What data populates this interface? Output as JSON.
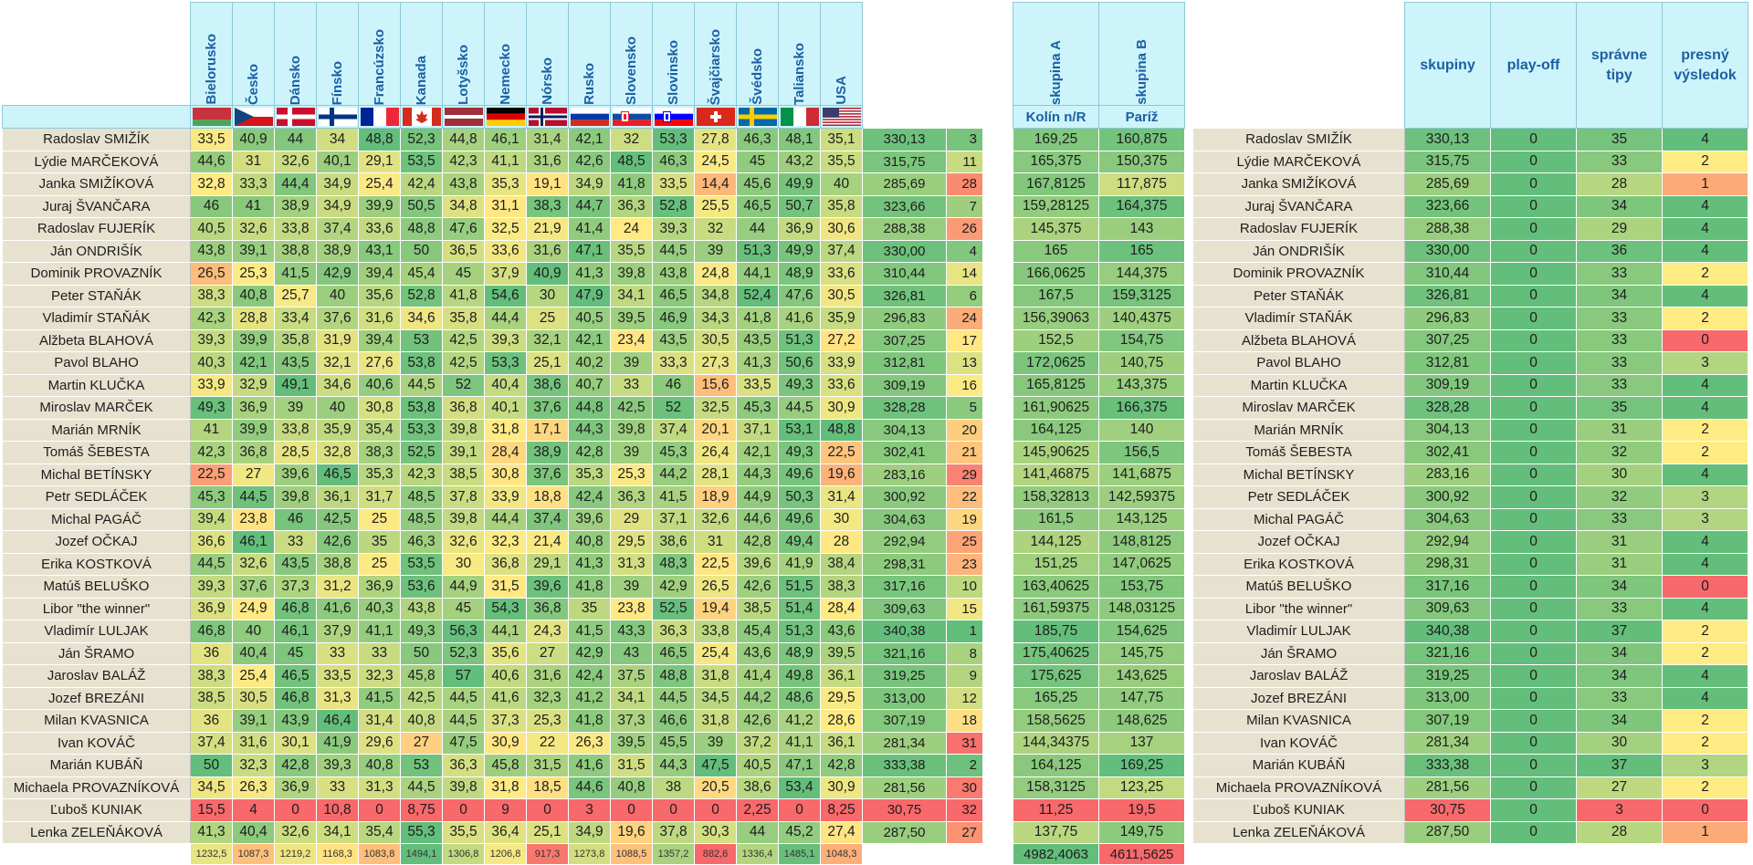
{
  "countries": [
    "Bielorusko",
    "Česko",
    "Dánsko",
    "Fínsko",
    "Francúzsko",
    "Kanada",
    "Lotyšsko",
    "Nemecko",
    "Nórsko",
    "Rusko",
    "Slovensko",
    "Slovinsko",
    "Švajčiarsko",
    "Švédsko",
    "Taliansko",
    "USA"
  ],
  "groups": {
    "headers": [
      "skupina A",
      "skupina B"
    ],
    "sub": [
      "Kolín n/R",
      "Paríž"
    ],
    "totals": [
      "4982,4063",
      "4611,5625"
    ]
  },
  "summary_headers": [
    "skupiny",
    "play-off",
    "správne tipy",
    "presný výsledok"
  ],
  "column_totals": [
    "1232,5",
    "1087,3",
    "1219,2",
    "1168,3",
    "1083,8",
    "1494,1",
    "1306,8",
    "1206,8",
    "917,3",
    "1273,8",
    "1088,5",
    "1357,2",
    "882,6",
    "1336,4",
    "1485,1",
    "1048,3"
  ],
  "rows": [
    {
      "name": "Radoslav SMIŽÍK",
      "scores": [
        "33,5",
        "40,9",
        "44",
        "34",
        "48,8",
        "52,3",
        "44,8",
        "46,1",
        "31,4",
        "42,1",
        "32",
        "53,3",
        "27,8",
        "46,3",
        "48,1",
        "35,1"
      ],
      "total": "330,13",
      "rank": "3",
      "ga": "169,25",
      "gb": "160,875",
      "skupiny": "330,13",
      "playoff": "0",
      "tipy": "35",
      "presny": "4"
    },
    {
      "name": "Lýdie MARČEKOVÁ",
      "scores": [
        "44,6",
        "31",
        "32,6",
        "40,1",
        "29,1",
        "53,5",
        "42,3",
        "41,1",
        "31,6",
        "42,6",
        "48,5",
        "46,3",
        "24,5",
        "45",
        "43,2",
        "35,5"
      ],
      "total": "315,75",
      "rank": "11",
      "ga": "165,375",
      "gb": "150,375",
      "skupiny": "315,75",
      "playoff": "0",
      "tipy": "33",
      "presny": "2"
    },
    {
      "name": "Janka SMIŽÍKOVÁ",
      "scores": [
        "32,8",
        "33,3",
        "44,4",
        "34,9",
        "25,4",
        "42,4",
        "43,8",
        "35,3",
        "19,1",
        "34,9",
        "41,8",
        "33,5",
        "14,4",
        "45,6",
        "49,9",
        "40"
      ],
      "total": "285,69",
      "rank": "28",
      "ga": "167,8125",
      "gb": "117,875",
      "skupiny": "285,69",
      "playoff": "0",
      "tipy": "28",
      "presny": "1"
    },
    {
      "name": "Juraj ŠVANČARA",
      "scores": [
        "46",
        "41",
        "38,9",
        "34,9",
        "39,9",
        "50,5",
        "34,8",
        "31,1",
        "38,3",
        "44,7",
        "36,3",
        "52,8",
        "25,5",
        "46,5",
        "50,7",
        "35,8"
      ],
      "total": "323,66",
      "rank": "7",
      "ga": "159,28125",
      "gb": "164,375",
      "skupiny": "323,66",
      "playoff": "0",
      "tipy": "34",
      "presny": "4"
    },
    {
      "name": "Radoslav FUJERÍK",
      "scores": [
        "40,5",
        "32,6",
        "33,8",
        "37,4",
        "33,6",
        "48,8",
        "47,6",
        "32,5",
        "21,9",
        "41,4",
        "24",
        "39,3",
        "32",
        "44",
        "36,9",
        "30,6"
      ],
      "total": "288,38",
      "rank": "26",
      "ga": "145,375",
      "gb": "143",
      "skupiny": "288,38",
      "playoff": "0",
      "tipy": "29",
      "presny": "4"
    },
    {
      "name": "Ján ONDRIŠÍK",
      "scores": [
        "43,8",
        "39,1",
        "38,8",
        "38,9",
        "43,1",
        "50",
        "36,5",
        "33,6",
        "31,6",
        "47,1",
        "35,5",
        "44,5",
        "39",
        "51,3",
        "49,9",
        "37,4"
      ],
      "total": "330,00",
      "rank": "4",
      "ga": "165",
      "gb": "165",
      "skupiny": "330,00",
      "playoff": "0",
      "tipy": "36",
      "presny": "4"
    },
    {
      "name": "Dominik PROVAZNÍK",
      "scores": [
        "26,5",
        "25,3",
        "41,5",
        "42,9",
        "39,4",
        "45,4",
        "45",
        "37,9",
        "40,9",
        "41,3",
        "39,8",
        "43,8",
        "24,8",
        "44,1",
        "48,9",
        "33,6"
      ],
      "total": "310,44",
      "rank": "14",
      "ga": "166,0625",
      "gb": "144,375",
      "skupiny": "310,44",
      "playoff": "0",
      "tipy": "33",
      "presny": "2"
    },
    {
      "name": "Peter STAŇÁK",
      "scores": [
        "38,3",
        "40,8",
        "25,7",
        "40",
        "35,6",
        "52,8",
        "41,8",
        "54,6",
        "30",
        "47,9",
        "34,1",
        "46,5",
        "34,8",
        "52,4",
        "47,6",
        "30,5"
      ],
      "total": "326,81",
      "rank": "6",
      "ga": "167,5",
      "gb": "159,3125",
      "skupiny": "326,81",
      "playoff": "0",
      "tipy": "34",
      "presny": "4"
    },
    {
      "name": "Vladimír STAŇÁK",
      "scores": [
        "42,3",
        "28,8",
        "33,4",
        "37,6",
        "31,6",
        "34,6",
        "35,8",
        "44,4",
        "25",
        "40,5",
        "39,5",
        "46,9",
        "34,3",
        "41,8",
        "41,6",
        "35,9"
      ],
      "total": "296,83",
      "rank": "24",
      "ga": "156,39063",
      "gb": "140,4375",
      "skupiny": "296,83",
      "playoff": "0",
      "tipy": "33",
      "presny": "2"
    },
    {
      "name": "Alžbeta BLAHOVÁ",
      "scores": [
        "39,3",
        "39,9",
        "35,8",
        "31,9",
        "39,4",
        "53",
        "42,5",
        "39,3",
        "32,1",
        "42,1",
        "23,4",
        "43,5",
        "30,5",
        "43,5",
        "51,3",
        "27,2"
      ],
      "total": "307,25",
      "rank": "17",
      "ga": "152,5",
      "gb": "154,75",
      "skupiny": "307,25",
      "playoff": "0",
      "tipy": "33",
      "presny": "0"
    },
    {
      "name": "Pavol BLAHO",
      "scores": [
        "40,3",
        "42,1",
        "43,5",
        "32,1",
        "27,6",
        "53,8",
        "42,5",
        "53,3",
        "25,1",
        "40,2",
        "39",
        "33,3",
        "27,3",
        "41,3",
        "50,6",
        "33,9"
      ],
      "total": "312,81",
      "rank": "13",
      "ga": "172,0625",
      "gb": "140,75",
      "skupiny": "312,81",
      "playoff": "0",
      "tipy": "33",
      "presny": "3"
    },
    {
      "name": "Martin KLUČKA",
      "scores": [
        "33,9",
        "32,9",
        "49,1",
        "34,6",
        "40,6",
        "44,5",
        "52",
        "40,4",
        "38,6",
        "40,7",
        "33",
        "46",
        "15,6",
        "33,5",
        "49,3",
        "33,6"
      ],
      "total": "309,19",
      "rank": "16",
      "ga": "165,8125",
      "gb": "143,375",
      "skupiny": "309,19",
      "playoff": "0",
      "tipy": "33",
      "presny": "4"
    },
    {
      "name": "Miroslav MARČEK",
      "scores": [
        "49,3",
        "36,9",
        "39",
        "40",
        "30,8",
        "53,8",
        "36,8",
        "40,1",
        "37,6",
        "44,8",
        "42,5",
        "52",
        "32,5",
        "45,3",
        "44,5",
        "30,9"
      ],
      "total": "328,28",
      "rank": "5",
      "ga": "161,90625",
      "gb": "166,375",
      "skupiny": "328,28",
      "playoff": "0",
      "tipy": "35",
      "presny": "4"
    },
    {
      "name": "Marián MRNÍK",
      "scores": [
        "41",
        "39,9",
        "33,8",
        "35,9",
        "35,4",
        "53,3",
        "39,8",
        "31,8",
        "17,1",
        "44,3",
        "39,8",
        "37,4",
        "20,1",
        "37,1",
        "53,1",
        "48,8"
      ],
      "total": "304,13",
      "rank": "20",
      "ga": "164,125",
      "gb": "140",
      "skupiny": "304,13",
      "playoff": "0",
      "tipy": "31",
      "presny": "2"
    },
    {
      "name": "Tomáš ŠEBESTA",
      "scores": [
        "42,3",
        "36,8",
        "28,5",
        "32,8",
        "38,3",
        "52,5",
        "39,1",
        "28,4",
        "38,9",
        "42,8",
        "39",
        "45,3",
        "26,4",
        "42,1",
        "49,3",
        "22,5"
      ],
      "total": "302,41",
      "rank": "21",
      "ga": "145,90625",
      "gb": "156,5",
      "skupiny": "302,41",
      "playoff": "0",
      "tipy": "32",
      "presny": "2"
    },
    {
      "name": "Michal BETÍNSKY",
      "scores": [
        "22,5",
        "27",
        "39,6",
        "46,5",
        "35,3",
        "42,3",
        "38,5",
        "30,8",
        "37,6",
        "35,3",
        "25,3",
        "44,2",
        "28,1",
        "44,3",
        "49,6",
        "19,6"
      ],
      "total": "283,16",
      "rank": "29",
      "ga": "141,46875",
      "gb": "141,6875",
      "skupiny": "283,16",
      "playoff": "0",
      "tipy": "30",
      "presny": "4"
    },
    {
      "name": "Petr SEDLÁČEK",
      "scores": [
        "45,3",
        "44,5",
        "39,8",
        "36,1",
        "31,7",
        "48,5",
        "37,8",
        "33,9",
        "18,8",
        "42,4",
        "36,3",
        "41,5",
        "18,9",
        "44,9",
        "50,3",
        "31,4"
      ],
      "total": "300,92",
      "rank": "22",
      "ga": "158,32813",
      "gb": "142,59375",
      "skupiny": "300,92",
      "playoff": "0",
      "tipy": "32",
      "presny": "3"
    },
    {
      "name": "Michal PAGÁČ",
      "scores": [
        "39,4",
        "23,8",
        "46",
        "42,5",
        "25",
        "48,5",
        "39,8",
        "44,4",
        "37,4",
        "39,6",
        "29",
        "37,1",
        "32,6",
        "44,6",
        "49,6",
        "30"
      ],
      "total": "304,63",
      "rank": "19",
      "ga": "161,5",
      "gb": "143,125",
      "skupiny": "304,63",
      "playoff": "0",
      "tipy": "33",
      "presny": "3"
    },
    {
      "name": "Jozef OČKAJ",
      "scores": [
        "36,6",
        "46,1",
        "33",
        "42,6",
        "35",
        "46,3",
        "32,6",
        "32,3",
        "21,4",
        "40,8",
        "29,5",
        "38,6",
        "31",
        "42,8",
        "49,4",
        "28"
      ],
      "total": "292,94",
      "rank": "25",
      "ga": "144,125",
      "gb": "148,8125",
      "skupiny": "292,94",
      "playoff": "0",
      "tipy": "31",
      "presny": "4"
    },
    {
      "name": "Erika KOSTKOVÁ",
      "scores": [
        "44,5",
        "32,6",
        "43,5",
        "38,8",
        "25",
        "53,5",
        "30",
        "36,8",
        "29,1",
        "41,3",
        "31,3",
        "48,3",
        "22,5",
        "39,6",
        "41,9",
        "38,4"
      ],
      "total": "298,31",
      "rank": "23",
      "ga": "151,25",
      "gb": "147,0625",
      "skupiny": "298,31",
      "playoff": "0",
      "tipy": "31",
      "presny": "4"
    },
    {
      "name": "Matúš BELUŠKO",
      "scores": [
        "39,3",
        "37,6",
        "37,3",
        "31,2",
        "36,9",
        "53,6",
        "44,9",
        "31,5",
        "39,6",
        "41,8",
        "39",
        "42,9",
        "26,5",
        "42,6",
        "51,5",
        "38,3"
      ],
      "total": "317,16",
      "rank": "10",
      "ga": "163,40625",
      "gb": "153,75",
      "skupiny": "317,16",
      "playoff": "0",
      "tipy": "34",
      "presny": "0"
    },
    {
      "name": "Libor \"the winner\"",
      "scores": [
        "36,9",
        "24,9",
        "46,8",
        "41,6",
        "40,3",
        "43,8",
        "45",
        "54,3",
        "36,8",
        "35",
        "23,8",
        "52,5",
        "19,4",
        "38,5",
        "51,4",
        "28,4"
      ],
      "total": "309,63",
      "rank": "15",
      "ga": "161,59375",
      "gb": "148,03125",
      "skupiny": "309,63",
      "playoff": "0",
      "tipy": "33",
      "presny": "4"
    },
    {
      "name": "Vladimír LULJAK",
      "scores": [
        "46,8",
        "40",
        "46,1",
        "37,9",
        "41,1",
        "49,3",
        "56,3",
        "44,1",
        "24,3",
        "41,5",
        "43,3",
        "36,3",
        "33,8",
        "45,4",
        "51,3",
        "43,6"
      ],
      "total": "340,38",
      "rank": "1",
      "ga": "185,75",
      "gb": "154,625",
      "skupiny": "340,38",
      "playoff": "0",
      "tipy": "37",
      "presny": "2"
    },
    {
      "name": "Ján ŠRAMO",
      "scores": [
        "36",
        "40,4",
        "45",
        "33",
        "33",
        "50",
        "52,3",
        "35,6",
        "27",
        "42,9",
        "43",
        "46,5",
        "25,4",
        "43,6",
        "48,9",
        "39,5"
      ],
      "total": "321,16",
      "rank": "8",
      "ga": "175,40625",
      "gb": "145,75",
      "skupiny": "321,16",
      "playoff": "0",
      "tipy": "34",
      "presny": "2"
    },
    {
      "name": "Jaroslav BALÁŽ",
      "scores": [
        "38,3",
        "25,4",
        "46,5",
        "33,5",
        "32,3",
        "45,8",
        "57",
        "40,6",
        "31,6",
        "42,4",
        "37,5",
        "48,8",
        "31,8",
        "41,4",
        "49,8",
        "36,1"
      ],
      "total": "319,25",
      "rank": "9",
      "ga": "175,625",
      "gb": "143,625",
      "skupiny": "319,25",
      "playoff": "0",
      "tipy": "34",
      "presny": "4"
    },
    {
      "name": "Jozef BREZÁNI",
      "scores": [
        "38,5",
        "30,5",
        "46,8",
        "31,3",
        "41,5",
        "42,5",
        "44,5",
        "41,6",
        "32,3",
        "41,2",
        "34,1",
        "44,5",
        "34,5",
        "44,2",
        "48,6",
        "29,5"
      ],
      "total": "313,00",
      "rank": "12",
      "ga": "165,25",
      "gb": "147,75",
      "skupiny": "313,00",
      "playoff": "0",
      "tipy": "33",
      "presny": "4"
    },
    {
      "name": "Milan KVASNICA",
      "scores": [
        "36",
        "39,1",
        "43,9",
        "46,4",
        "31,4",
        "40,8",
        "44,5",
        "37,3",
        "25,3",
        "41,8",
        "37,3",
        "46,6",
        "31,8",
        "42,6",
        "41,2",
        "28,6"
      ],
      "total": "307,19",
      "rank": "18",
      "ga": "158,5625",
      "gb": "148,625",
      "skupiny": "307,19",
      "playoff": "0",
      "tipy": "34",
      "presny": "2"
    },
    {
      "name": "Ivan KOVÁČ",
      "scores": [
        "37,4",
        "31,6",
        "30,1",
        "41,9",
        "29,6",
        "27",
        "47,5",
        "30,9",
        "22",
        "26,3",
        "39,5",
        "45,5",
        "39",
        "37,2",
        "41,1",
        "36,1"
      ],
      "total": "281,34",
      "rank": "31",
      "ga": "144,34375",
      "gb": "137",
      "skupiny": "281,34",
      "playoff": "0",
      "tipy": "30",
      "presny": "2"
    },
    {
      "name": "Marián KUBÁŇ",
      "scores": [
        "50",
        "32,3",
        "42,8",
        "39,3",
        "40,8",
        "53",
        "36,3",
        "45,8",
        "31,5",
        "41,6",
        "31,5",
        "44,3",
        "47,5",
        "40,5",
        "47,1",
        "42,8"
      ],
      "total": "333,38",
      "rank": "2",
      "ga": "164,125",
      "gb": "169,25",
      "skupiny": "333,38",
      "playoff": "0",
      "tipy": "37",
      "presny": "3"
    },
    {
      "name": "Michaela PROVAZNÍKOVÁ",
      "scores": [
        "34,5",
        "26,3",
        "36,9",
        "33",
        "31,3",
        "44,5",
        "39,8",
        "31,8",
        "18,5",
        "44,6",
        "40,8",
        "38",
        "20,5",
        "38,6",
        "53,4",
        "30,9"
      ],
      "total": "281,56",
      "rank": "30",
      "ga": "158,3125",
      "gb": "123,25",
      "skupiny": "281,56",
      "playoff": "0",
      "tipy": "27",
      "presny": "2"
    },
    {
      "name": "Ľuboš KUNIAK",
      "scores": [
        "15,5",
        "4",
        "0",
        "10,8",
        "0",
        "8,75",
        "0",
        "9",
        "0",
        "3",
        "0",
        "0",
        "0",
        "2,25",
        "0",
        "8,25"
      ],
      "total": "30,75",
      "rank": "32",
      "ga": "11,25",
      "gb": "19,5",
      "skupiny": "30,75",
      "playoff": "0",
      "tipy": "3",
      "presny": "0"
    },
    {
      "name": "Lenka ZELEŇÁKOVÁ",
      "scores": [
        "41,3",
        "40,4",
        "32,6",
        "34,1",
        "35,4",
        "55,3",
        "35,5",
        "36,4",
        "25,1",
        "34,9",
        "19,6",
        "37,8",
        "30,3",
        "44",
        "45,2",
        "27,4"
      ],
      "total": "287,50",
      "rank": "27",
      "ga": "137,75",
      "gb": "149,75",
      "skupiny": "287,50",
      "playoff": "0",
      "tipy": "28",
      "presny": "1"
    }
  ]
}
